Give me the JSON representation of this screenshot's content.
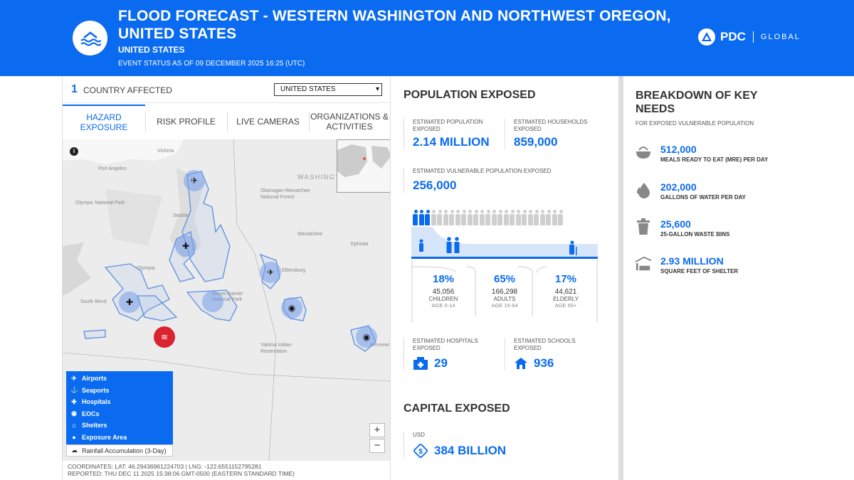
{
  "header": {
    "title": "FLOOD FORECAST - WESTERN WASHINGTON AND NORTHWEST OREGON, UNITED STATES",
    "country": "UNITED STATES",
    "status": "EVENT STATUS AS OF 09 DECEMBER 2025 16:25 (UTC)",
    "logo_text": "PDC",
    "logo_sub": "GLOBAL"
  },
  "left": {
    "country_count": "1",
    "country_label": "COUNTRY AFFECTED",
    "country_select": "UNITED STATES",
    "tabs": [
      "HAZARD EXPOSURE",
      "RISK PROFILE",
      "LIVE CAMERAS",
      "ORGANIZATIONS & ACTIVITIES"
    ],
    "map_labels": {
      "victoria": "Victoria",
      "port_angeles": "Port Angeles",
      "olympic": "Olympic National Park",
      "seattle": "Seattle",
      "washington": "WASHINGTON",
      "okanogan": "Okanogan-Wenatchee National Forest",
      "wenatchee": "Wenatchee",
      "ephrata": "Ephrata",
      "olympia": "Olympia",
      "ellensburg": "Ellensburg",
      "rainier": "Mount Rainier National Park",
      "yakima": "Yakima Indian Reservation",
      "south_bend": "South Bend",
      "kennewick": "Kennewi"
    },
    "info_label": "i",
    "zoom_in": "+",
    "zoom_out": "−",
    "legend": [
      "Airports",
      "Seaports",
      "Hospitals",
      "EOCs",
      "Shelters",
      "Exposure Area"
    ],
    "legend_rain": "Rainfall Accumulation (3-Day)",
    "coords": "COORDINATES: LAT: 46.29436961224703 | LNG: -122.6551152795281",
    "reported": "REPORTED: THU DEC 11 2025 15:38:06 GMT-0500 (EASTERN STANDARD TIME)"
  },
  "population": {
    "title": "POPULATION EXPOSED",
    "est_pop_label": "ESTIMATED POPULATION EXPOSED",
    "est_pop": "2.14 MILLION",
    "est_hh_label": "ESTIMATED HOUSEHOLDS EXPOSED",
    "est_hh": "859,000",
    "vuln_label": "ESTIMATED VULNERABLE POPULATION EXPOSED",
    "vuln": "256,000",
    "vulnerable_share": 0.12,
    "age_groups": [
      {
        "pct": "18%",
        "count": "45,056",
        "label": "CHILDREN",
        "range": "AGE 0-14"
      },
      {
        "pct": "65%",
        "count": "166,298",
        "label": "ADULTS",
        "range": "AGE 15-64"
      },
      {
        "pct": "17%",
        "count": "44,621",
        "label": "ELDERLY",
        "range": "AGE 65+"
      }
    ],
    "hospitals_label": "ESTIMATED HOSPITALS EXPOSED",
    "hospitals": "29",
    "schools_label": "ESTIMATED SCHOOLS EXPOSED",
    "schools": "936"
  },
  "capital": {
    "title": "CAPITAL EXPOSED",
    "currency": "USD",
    "value": "384 BILLION"
  },
  "needs": {
    "title": "BREAKDOWN OF KEY NEEDS",
    "subtitle": "FOR EXPOSED VULNERABLE POPULATION",
    "items": [
      {
        "value": "512,000",
        "label": "MEALS READY TO EAT (MRE) PER DAY"
      },
      {
        "value": "202,000",
        "label": "GALLONS OF WATER PER DAY"
      },
      {
        "value": "25,600",
        "label": "25-GALLON WASTE BINS"
      },
      {
        "value": "2.93 MILLION",
        "label": "SQUARE FEET OF SHELTER"
      }
    ]
  },
  "colors": {
    "accent": "#0a6bf0",
    "alert": "#d9232e"
  }
}
